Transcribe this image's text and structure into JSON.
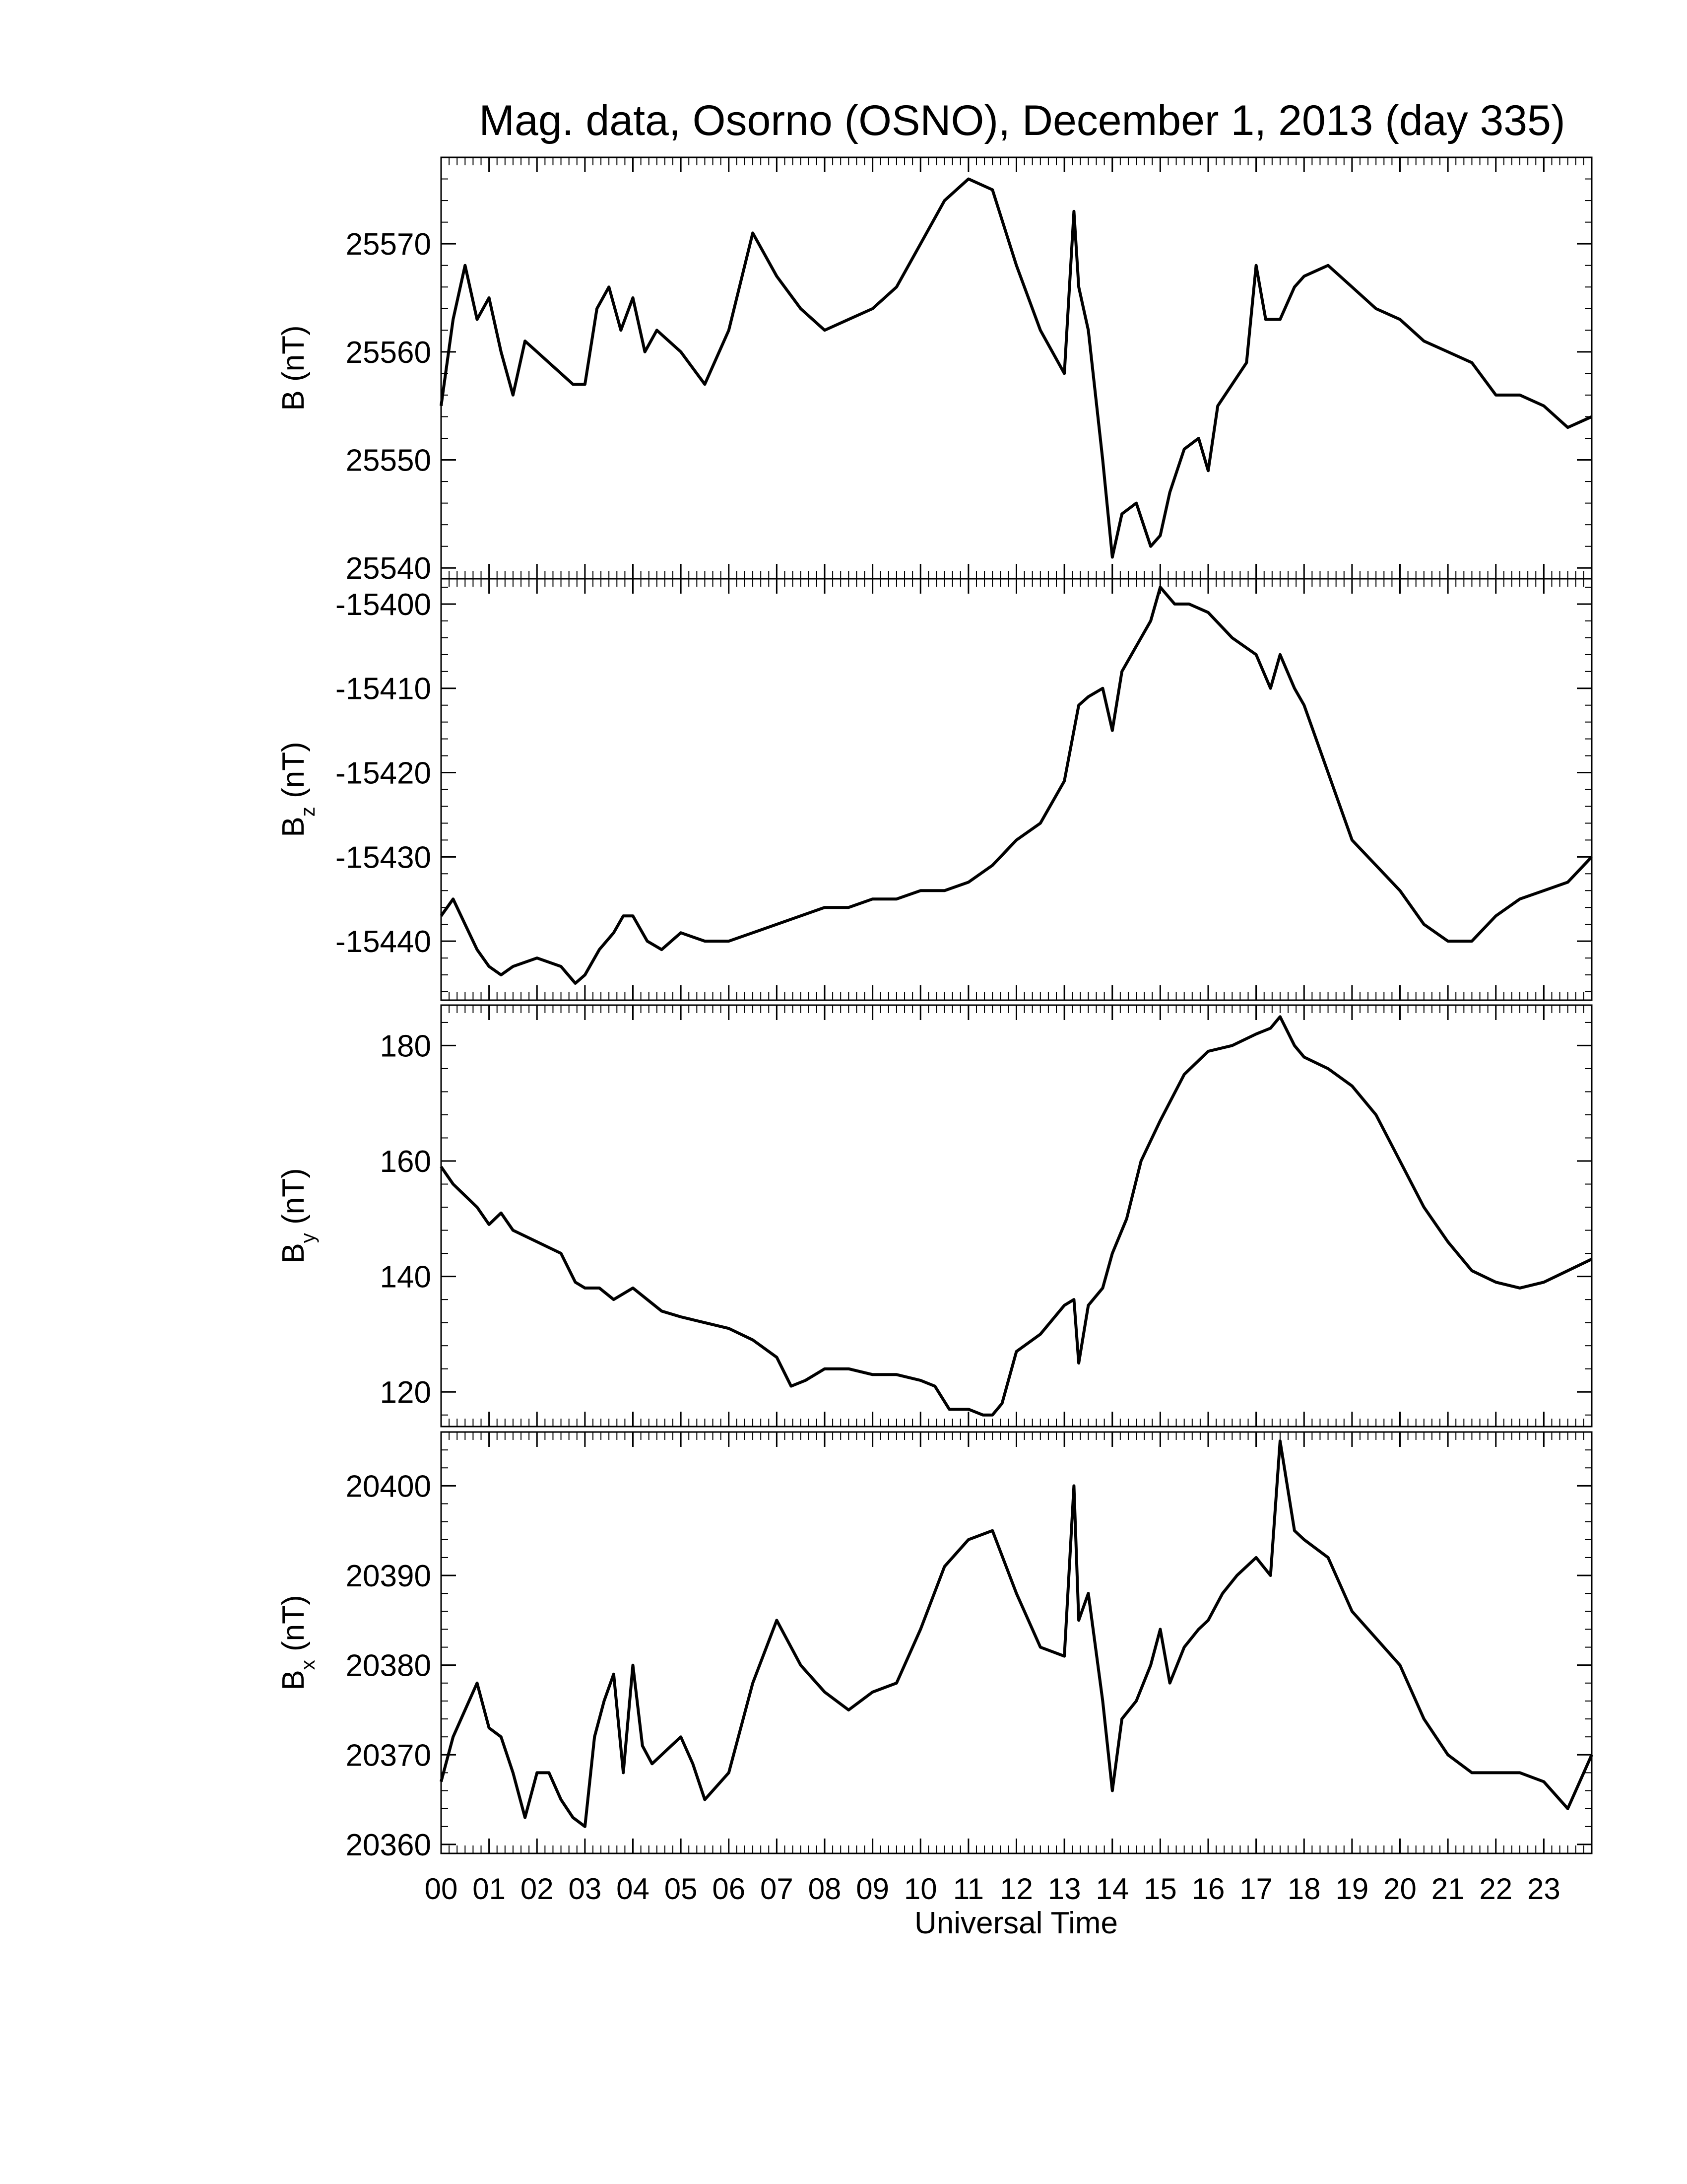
{
  "title": "Mag. data, Osorno (OSNO), December 1, 2013 (day 335)",
  "colors": {
    "line": "#000000",
    "background": "#ffffff"
  },
  "chart_data": {
    "type": "line",
    "xlabel": "Universal Time",
    "x_unit": "hours UT",
    "xlim": [
      0,
      24
    ],
    "x_tick_labels": [
      "00",
      "01",
      "02",
      "03",
      "04",
      "05",
      "06",
      "07",
      "08",
      "09",
      "10",
      "11",
      "12",
      "13",
      "14",
      "15",
      "16",
      "17",
      "18",
      "19",
      "20",
      "21",
      "22",
      "23"
    ],
    "x_ticks": [
      0,
      1,
      2,
      3,
      4,
      5,
      6,
      7,
      8,
      9,
      10,
      11,
      12,
      13,
      14,
      15,
      16,
      17,
      18,
      19,
      20,
      21,
      22,
      23
    ],
    "panels": [
      {
        "key": "B",
        "ylabel_main": "B",
        "ylabel_sub": "",
        "ylabel_unit": "(nT)",
        "ylim": [
          25539,
          25578
        ],
        "yticks": [
          25540,
          25550,
          25560,
          25570
        ],
        "x": [
          0,
          0.25,
          0.5,
          0.75,
          1,
          1.25,
          1.5,
          1.75,
          2,
          2.25,
          2.5,
          2.75,
          3,
          3.25,
          3.5,
          3.75,
          4,
          4.25,
          4.5,
          4.75,
          5,
          5.5,
          6,
          6.5,
          7,
          7.5,
          8,
          8.5,
          9,
          9.5,
          10,
          10.5,
          11,
          11.5,
          12,
          12.5,
          13,
          13.2,
          13.3,
          13.5,
          13.8,
          14,
          14.2,
          14.5,
          14.8,
          15,
          15.2,
          15.5,
          15.8,
          16,
          16.2,
          16.5,
          16.8,
          17,
          17.2,
          17.5,
          17.8,
          18,
          18.5,
          19,
          19.5,
          20,
          20.5,
          21,
          21.5,
          22,
          22.5,
          23,
          23.5,
          24
        ],
        "values": [
          25555,
          25563,
          25568,
          25563,
          25565,
          25560,
          25556,
          25561,
          25560,
          25559,
          25558,
          25557,
          25557,
          25564,
          25566,
          25562,
          25565,
          25560,
          25562,
          25561,
          25560,
          25557,
          25562,
          25571,
          25567,
          25564,
          25562,
          25563,
          25564,
          25566,
          25570,
          25574,
          25576,
          25575,
          25568,
          25562,
          25558,
          25573,
          25566,
          25562,
          25550,
          25541,
          25545,
          25546,
          25542,
          25543,
          25547,
          25551,
          25552,
          25549,
          25555,
          25557,
          25559,
          25568,
          25563,
          25563,
          25566,
          25567,
          25568,
          25566,
          25564,
          25563,
          25561,
          25560,
          25559,
          25556,
          25556,
          25555,
          25553,
          25554
        ]
      },
      {
        "key": "Bz",
        "ylabel_main": "B",
        "ylabel_sub": "z",
        "ylabel_unit": "(nT)",
        "ylim": [
          -15447,
          -15397
        ],
        "yticks": [
          -15400,
          -15410,
          -15420,
          -15430,
          -15440
        ],
        "x": [
          0,
          0.25,
          0.5,
          0.75,
          1,
          1.25,
          1.5,
          2,
          2.5,
          2.8,
          3,
          3.3,
          3.6,
          3.8,
          4,
          4.3,
          4.6,
          5,
          5.5,
          6,
          6.5,
          7,
          7.5,
          8,
          8.5,
          9,
          9.5,
          10,
          10.5,
          11,
          11.5,
          12,
          12.5,
          13,
          13.3,
          13.5,
          13.8,
          14,
          14.2,
          14.5,
          14.8,
          15,
          15.3,
          15.6,
          16,
          16.5,
          17,
          17.3,
          17.5,
          17.8,
          18,
          18.5,
          19,
          19.5,
          20,
          20.5,
          21,
          21.5,
          22,
          22.5,
          23,
          23.5,
          24
        ],
        "values": [
          -15437,
          -15435,
          -15438,
          -15441,
          -15443,
          -15444,
          -15443,
          -15442,
          -15443,
          -15445,
          -15444,
          -15441,
          -15439,
          -15437,
          -15437,
          -15440,
          -15441,
          -15439,
          -15440,
          -15440,
          -15439,
          -15438,
          -15437,
          -15436,
          -15436,
          -15435,
          -15435,
          -15434,
          -15434,
          -15433,
          -15431,
          -15428,
          -15426,
          -15421,
          -15412,
          -15411,
          -15410,
          -15415,
          -15408,
          -15405,
          -15402,
          -15398,
          -15400,
          -15400,
          -15401,
          -15404,
          -15406,
          -15410,
          -15406,
          -15410,
          -15412,
          -15420,
          -15428,
          -15431,
          -15434,
          -15438,
          -15440,
          -15440,
          -15437,
          -15435,
          -15434,
          -15433,
          -15430
        ]
      },
      {
        "key": "By",
        "ylabel_main": "B",
        "ylabel_sub": "y",
        "ylabel_unit": "(nT)",
        "ylim": [
          114,
          187
        ],
        "yticks": [
          120,
          140,
          160,
          180
        ],
        "x": [
          0,
          0.25,
          0.5,
          0.75,
          1,
          1.25,
          1.5,
          1.75,
          2,
          2.5,
          2.8,
          3,
          3.3,
          3.6,
          4,
          4.3,
          4.6,
          5,
          5.5,
          6,
          6.5,
          7,
          7.3,
          7.6,
          8,
          8.5,
          9,
          9.5,
          10,
          10.3,
          10.6,
          11,
          11.3,
          11.5,
          11.7,
          12,
          12.5,
          13,
          13.2,
          13.3,
          13.5,
          13.8,
          14,
          14.3,
          14.6,
          15,
          15.5,
          16,
          16.5,
          17,
          17.3,
          17.5,
          17.8,
          18,
          18.5,
          19,
          19.5,
          20,
          20.5,
          21,
          21.5,
          22,
          22.5,
          23,
          23.5,
          24
        ],
        "values": [
          159,
          156,
          154,
          152,
          149,
          151,
          148,
          147,
          146,
          144,
          139,
          138,
          138,
          136,
          138,
          136,
          134,
          133,
          132,
          131,
          129,
          126,
          121,
          122,
          124,
          124,
          123,
          123,
          122,
          121,
          117,
          117,
          116,
          116,
          118,
          127,
          130,
          135,
          136,
          125,
          135,
          138,
          144,
          150,
          160,
          167,
          175,
          179,
          180,
          182,
          183,
          185,
          180,
          178,
          176,
          173,
          168,
          160,
          152,
          146,
          141,
          139,
          138,
          139,
          141,
          143
        ]
      },
      {
        "key": "Bx",
        "ylabel_main": "B",
        "ylabel_sub": "x",
        "ylabel_unit": "(nT)",
        "ylim": [
          20359,
          20406
        ],
        "yticks": [
          20360,
          20370,
          20380,
          20390,
          20400
        ],
        "x": [
          0,
          0.25,
          0.5,
          0.75,
          1,
          1.25,
          1.5,
          1.75,
          2,
          2.25,
          2.5,
          2.75,
          3,
          3.2,
          3.4,
          3.6,
          3.8,
          4,
          4.2,
          4.4,
          4.6,
          4.8,
          5,
          5.25,
          5.5,
          6,
          6.5,
          7,
          7.5,
          8,
          8.5,
          9,
          9.5,
          10,
          10.5,
          11,
          11.5,
          12,
          12.5,
          13,
          13.2,
          13.3,
          13.5,
          13.8,
          14,
          14.2,
          14.5,
          14.8,
          15,
          15.2,
          15.5,
          15.8,
          16,
          16.3,
          16.6,
          17,
          17.3,
          17.5,
          17.8,
          18,
          18.5,
          19,
          19.5,
          20,
          20.5,
          21,
          21.5,
          22,
          22.5,
          23,
          23.5,
          24
        ],
        "values": [
          20367,
          20372,
          20375,
          20378,
          20373,
          20372,
          20368,
          20363,
          20368,
          20368,
          20365,
          20363,
          20362,
          20372,
          20376,
          20379,
          20368,
          20380,
          20371,
          20369,
          20370,
          20371,
          20372,
          20369,
          20365,
          20368,
          20378,
          20385,
          20380,
          20377,
          20375,
          20377,
          20378,
          20384,
          20391,
          20394,
          20395,
          20388,
          20382,
          20381,
          20400,
          20385,
          20388,
          20376,
          20366,
          20374,
          20376,
          20380,
          20384,
          20378,
          20382,
          20384,
          20385,
          20388,
          20390,
          20392,
          20390,
          20405,
          20395,
          20394,
          20392,
          20386,
          20383,
          20380,
          20374,
          20370,
          20368,
          20368,
          20368,
          20367,
          20364,
          20370
        ]
      }
    ]
  }
}
